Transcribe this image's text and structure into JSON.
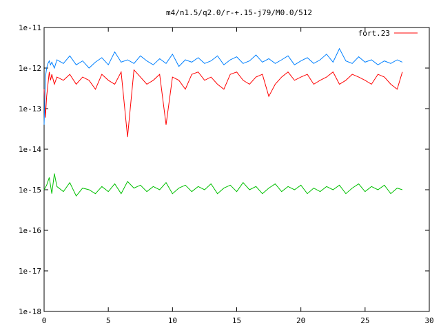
{
  "chart_data": {
    "type": "line",
    "title": "m4/n1.5/q2.0/r-+.15-j79/M0.0/512",
    "xlabel": "",
    "ylabel": "",
    "xlim": [
      0,
      30
    ],
    "ylim": [
      1e-18,
      1e-11
    ],
    "yscale": "log",
    "grid": false,
    "legend_position": "top-right",
    "x_ticks": [
      0,
      5,
      10,
      15,
      20,
      25,
      30
    ],
    "x_tick_labels": [
      "0",
      "5",
      "10",
      "15",
      "20",
      "25",
      "30"
    ],
    "y_ticks": [
      1e-18,
      1e-17,
      1e-16,
      1e-15,
      1e-14,
      1e-13,
      1e-12,
      1e-11
    ],
    "y_tick_labels": [
      "1e-18",
      "1e-17",
      "1e-16",
      "1e-15",
      "1e-14",
      "1e-13",
      "1e-12",
      "1e-11"
    ],
    "series": [
      {
        "name": "fort.23",
        "color": "#ff0000",
        "x": [
          0.0,
          0.1,
          0.2,
          0.3,
          0.4,
          0.5,
          0.6,
          0.8,
          1.0,
          1.5,
          2.0,
          2.5,
          3.0,
          3.5,
          4.0,
          4.5,
          5.0,
          5.5,
          6.0,
          6.5,
          7.0,
          7.5,
          8.0,
          8.5,
          9.0,
          9.5,
          10.0,
          10.5,
          11.0,
          11.5,
          12.0,
          12.5,
          13.0,
          13.5,
          14.0,
          14.5,
          15.0,
          15.5,
          16.0,
          16.5,
          17.0,
          17.5,
          18.0,
          18.5,
          19.0,
          19.5,
          20.0,
          20.5,
          21.0,
          21.5,
          22.0,
          22.5,
          23.0,
          23.5,
          24.0,
          24.5,
          25.0,
          25.5,
          26.0,
          26.5,
          27.0,
          27.5,
          27.9
        ],
        "y": [
          3e-13,
          6e-14,
          2e-13,
          4e-13,
          8e-13,
          5e-13,
          7e-13,
          4e-13,
          6e-13,
          5e-13,
          7e-13,
          4e-13,
          6e-13,
          5e-13,
          3e-13,
          7e-13,
          5e-13,
          4e-13,
          8e-13,
          2e-14,
          9e-13,
          6e-13,
          4e-13,
          5e-13,
          7e-13,
          4e-14,
          6e-13,
          5e-13,
          3e-13,
          7e-13,
          8e-13,
          5e-13,
          6e-13,
          4e-13,
          3e-13,
          7e-13,
          8e-13,
          5e-13,
          4e-13,
          6e-13,
          7e-13,
          2e-13,
          4e-13,
          6e-13,
          8e-13,
          5e-13,
          6e-13,
          7e-13,
          4e-13,
          5e-13,
          6e-13,
          8e-13,
          4e-13,
          5e-13,
          7e-13,
          6e-13,
          5e-13,
          4e-13,
          7e-13,
          6e-13,
          4e-13,
          3e-13,
          8e-13
        ]
      },
      {
        "name": "",
        "color": "#0080ff",
        "x": [
          0.0,
          0.1,
          0.2,
          0.3,
          0.4,
          0.5,
          0.6,
          0.8,
          1.0,
          1.5,
          2.0,
          2.5,
          3.0,
          3.5,
          4.0,
          4.5,
          5.0,
          5.5,
          6.0,
          6.5,
          7.0,
          7.5,
          8.0,
          8.5,
          9.0,
          9.5,
          10.0,
          10.5,
          11.0,
          11.5,
          12.0,
          12.5,
          13.0,
          13.5,
          14.0,
          14.5,
          15.0,
          15.5,
          16.0,
          16.5,
          17.0,
          17.5,
          18.0,
          18.5,
          19.0,
          19.5,
          20.0,
          20.5,
          21.0,
          21.5,
          22.0,
          22.5,
          23.0,
          23.5,
          24.0,
          24.5,
          25.0,
          25.5,
          26.0,
          26.5,
          27.0,
          27.5,
          27.9
        ],
        "y": [
          4e-14,
          6e-13,
          1e-12,
          1.3e-12,
          1.5e-12,
          1.2e-12,
          1.4e-12,
          1e-12,
          1.6e-12,
          1.3e-12,
          2e-12,
          1.2e-12,
          1.5e-12,
          1e-12,
          1.4e-12,
          1.8e-12,
          1.2e-12,
          2.5e-12,
          1.4e-12,
          1.6e-12,
          1.3e-12,
          2e-12,
          1.5e-12,
          1.2e-12,
          1.7e-12,
          1.3e-12,
          2.2e-12,
          1.1e-12,
          1.6e-12,
          1.4e-12,
          1.8e-12,
          1.3e-12,
          1.5e-12,
          2e-12,
          1.2e-12,
          1.6e-12,
          1.9e-12,
          1.3e-12,
          1.5e-12,
          2.1e-12,
          1.4e-12,
          1.7e-12,
          1.3e-12,
          1.6e-12,
          2e-12,
          1.2e-12,
          1.5e-12,
          1.8e-12,
          1.3e-12,
          1.6e-12,
          2.2e-12,
          1.4e-12,
          3e-12,
          1.5e-12,
          1.3e-12,
          1.9e-12,
          1.4e-12,
          1.6e-12,
          1.2e-12,
          1.5e-12,
          1.3e-12,
          1.6e-12,
          1.4e-12
        ]
      },
      {
        "name": "",
        "color": "#00c000",
        "x": [
          0.0,
          0.2,
          0.4,
          0.6,
          0.8,
          1.0,
          1.5,
          2.0,
          2.5,
          3.0,
          3.5,
          4.0,
          4.5,
          5.0,
          5.5,
          6.0,
          6.5,
          7.0,
          7.5,
          8.0,
          8.5,
          9.0,
          9.5,
          10.0,
          10.5,
          11.0,
          11.5,
          12.0,
          12.5,
          13.0,
          13.5,
          14.0,
          14.5,
          15.0,
          15.5,
          16.0,
          16.5,
          17.0,
          17.5,
          18.0,
          18.5,
          19.0,
          19.5,
          20.0,
          20.5,
          21.0,
          21.5,
          22.0,
          22.5,
          23.0,
          23.5,
          24.0,
          24.5,
          25.0,
          25.5,
          26.0,
          26.5,
          27.0,
          27.5,
          27.9
        ],
        "y": [
          1e-15,
          1.3e-15,
          2e-15,
          8e-16,
          2.5e-15,
          1.2e-15,
          9e-16,
          1.5e-15,
          7e-16,
          1.1e-15,
          1e-15,
          8e-16,
          1.2e-15,
          9e-16,
          1.4e-15,
          8e-16,
          1.6e-15,
          1.1e-15,
          1.3e-15,
          9e-16,
          1.2e-15,
          1e-15,
          1.5e-15,
          8e-16,
          1.1e-15,
          1.3e-15,
          9e-16,
          1.2e-15,
          1e-15,
          1.4e-15,
          8e-16,
          1.1e-15,
          1.3e-15,
          9e-16,
          1.5e-15,
          1e-15,
          1.2e-15,
          8e-16,
          1.1e-15,
          1.4e-15,
          9e-16,
          1.2e-15,
          1e-15,
          1.3e-15,
          8e-16,
          1.1e-15,
          9e-16,
          1.2e-15,
          1e-15,
          1.3e-15,
          8e-16,
          1.1e-15,
          1.4e-15,
          9e-16,
          1.2e-15,
          1e-15,
          1.3e-15,
          8e-16,
          1.1e-15,
          1e-15
        ]
      }
    ]
  }
}
